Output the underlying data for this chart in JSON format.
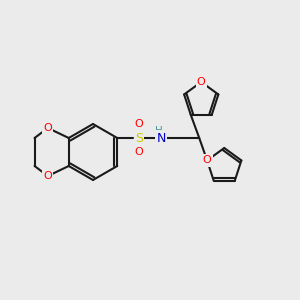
{
  "background_color": "#ebebeb",
  "bond_color": "#1a1a1a",
  "bond_width": 1.5,
  "atom_colors": {
    "O": "#ff0000",
    "N": "#0000cd",
    "S": "#cccc00",
    "H": "#4a9a9a"
  }
}
